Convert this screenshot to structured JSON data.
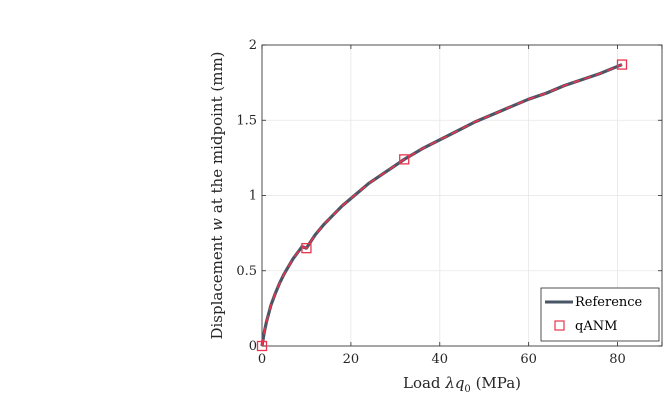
{
  "chart_data": {
    "type": "line",
    "title": "",
    "xlabel_prefix": "Load ",
    "xlabel_symbol": "λq",
    "xlabel_subscript": "0",
    "xlabel_suffix": " (MPa)",
    "ylabel_prefix": "Displacement ",
    "ylabel_symbol": "w",
    "ylabel_suffix": " at the midpoint (mm)",
    "xlim": [
      0,
      90
    ],
    "ylim": [
      0,
      2
    ],
    "xticks": [
      0,
      20,
      40,
      60,
      80
    ],
    "yticks": [
      0,
      0.5,
      1,
      1.5,
      2
    ],
    "xtick_labels": [
      "0",
      "20",
      "40",
      "60",
      "80"
    ],
    "ytick_labels": [
      "0",
      "0.5",
      "1",
      "1.5",
      "2"
    ],
    "grid": true,
    "legend_position": "bottom-right",
    "series": [
      {
        "name": "Reference",
        "style": "solid",
        "color": "#4a5566",
        "x": [
          0,
          0.5,
          1,
          2,
          3,
          4,
          5,
          6,
          7,
          8,
          9,
          10,
          12,
          14,
          16,
          18,
          20,
          22,
          24,
          26,
          28,
          30,
          32,
          36,
          40,
          44,
          48,
          52,
          56,
          60,
          64,
          68,
          72,
          76,
          81
        ],
        "y": [
          0,
          0.09,
          0.16,
          0.27,
          0.35,
          0.42,
          0.48,
          0.53,
          0.58,
          0.62,
          0.66,
          0.65,
          0.74,
          0.81,
          0.87,
          0.93,
          0.98,
          1.03,
          1.08,
          1.12,
          1.16,
          1.2,
          1.24,
          1.31,
          1.37,
          1.43,
          1.49,
          1.54,
          1.59,
          1.64,
          1.68,
          1.73,
          1.77,
          1.81,
          1.87
        ]
      },
      {
        "name": "qANM",
        "style": "dashed-markers",
        "color": "#e8344e",
        "line_x": [
          0,
          0.5,
          1,
          2,
          3,
          4,
          5,
          6,
          7,
          8,
          9,
          10,
          12,
          14,
          16,
          18,
          20,
          22,
          24,
          26,
          28,
          30,
          32,
          36,
          40,
          44,
          48,
          52,
          56,
          60,
          64,
          68,
          72,
          76,
          81
        ],
        "line_y": [
          0,
          0.09,
          0.16,
          0.27,
          0.35,
          0.42,
          0.48,
          0.53,
          0.58,
          0.62,
          0.66,
          0.65,
          0.74,
          0.81,
          0.87,
          0.93,
          0.98,
          1.03,
          1.08,
          1.12,
          1.16,
          1.2,
          1.24,
          1.31,
          1.37,
          1.43,
          1.49,
          1.54,
          1.59,
          1.64,
          1.68,
          1.73,
          1.77,
          1.81,
          1.87
        ],
        "x": [
          0,
          10,
          32,
          81
        ],
        "y": [
          0,
          0.65,
          1.24,
          1.87
        ]
      }
    ]
  }
}
